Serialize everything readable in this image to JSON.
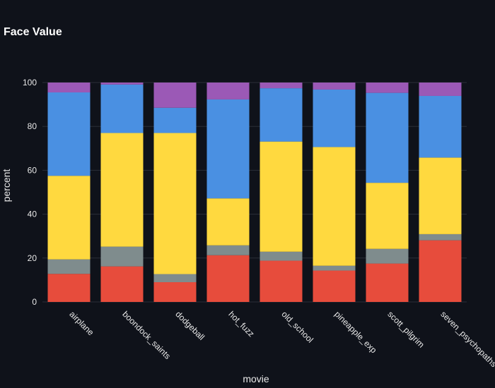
{
  "chart_data": {
    "type": "bar",
    "stacked": true,
    "title": "Face Value",
    "xlabel": "movie",
    "ylabel": "percent",
    "ylim": [
      0,
      100
    ],
    "yticks": [
      0,
      20,
      40,
      60,
      80,
      100
    ],
    "grid": true,
    "legend": "none",
    "categories": [
      "airplane",
      "boondock_saints",
      "dodgeball",
      "hot_fuzz",
      "old_school",
      "pineapple_exp",
      "scott_pilgrim",
      "seven_psychopaths"
    ],
    "series": [
      {
        "color": "#e74c3c",
        "values": [
          12.8,
          16.2,
          9.0,
          21.3,
          18.8,
          14.3,
          17.5,
          28.1
        ]
      },
      {
        "color": "#7f8c8d",
        "values": [
          6.6,
          9.0,
          3.7,
          4.5,
          4.1,
          2.2,
          6.7,
          2.8
        ]
      },
      {
        "color": "#ffd93f",
        "values": [
          38.1,
          51.8,
          64.3,
          21.4,
          50.2,
          54.1,
          30.1,
          34.9
        ]
      },
      {
        "color": "#4a90e2",
        "values": [
          38.0,
          22.1,
          11.5,
          45.1,
          24.3,
          26.2,
          41.0,
          28.1
        ]
      },
      {
        "color": "#9b59b6",
        "values": [
          4.5,
          0.9,
          11.5,
          7.7,
          2.6,
          3.2,
          4.7,
          6.1
        ]
      }
    ]
  }
}
